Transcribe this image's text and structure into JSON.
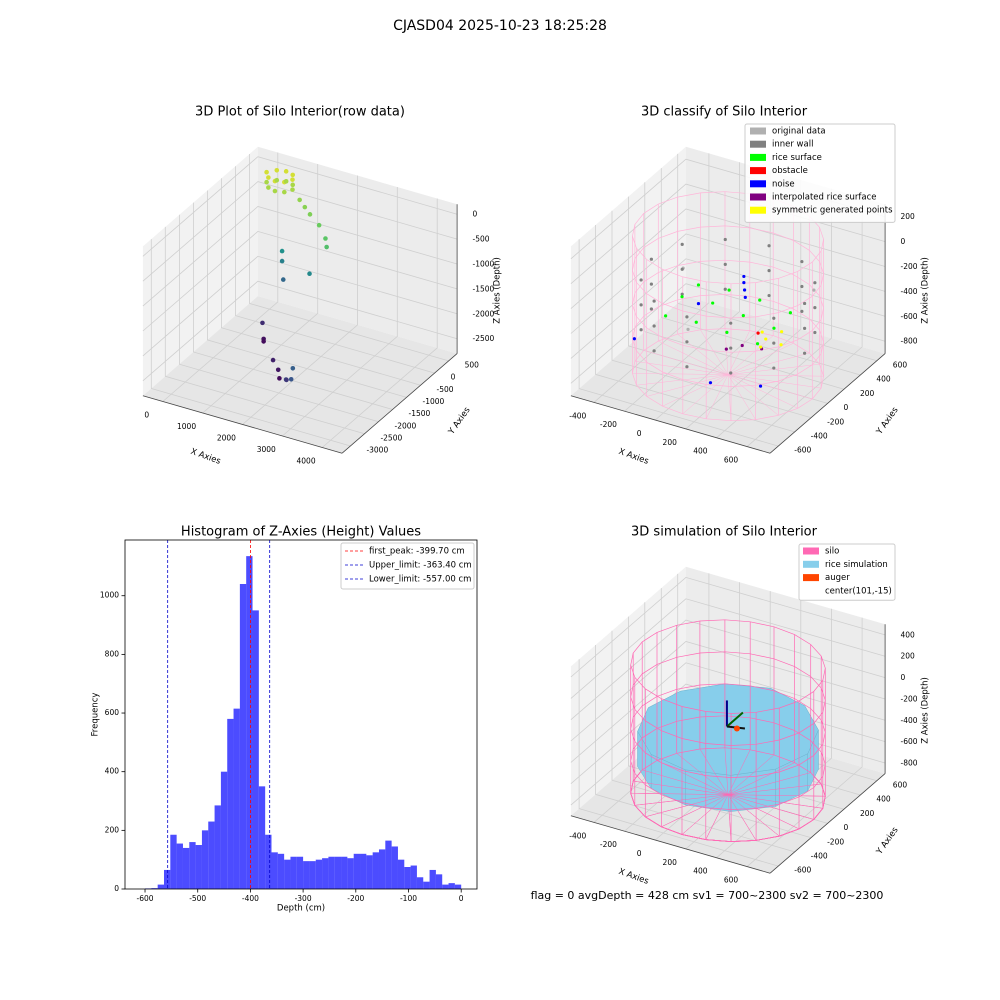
{
  "suptitle": "CJASD04 2025-10-23 18:25:28",
  "status": "flag = 0     avgDepth = 428 cm  sv1 = 700~2300  sv2 = 700~2300",
  "chart_data": [
    {
      "type": "scatter3d",
      "title": "3D Plot of Silo Interior(row data)",
      "x_label": "X Axies",
      "y_label": "Y Axies",
      "z_label": "Z Axies (Depth)",
      "xlim": [
        -500,
        4500
      ],
      "ylim": [
        -3300,
        800
      ],
      "zlim": [
        -2800,
        200
      ],
      "xticks": [
        0,
        1000,
        2000,
        3000,
        4000
      ],
      "yticks": [
        -3000,
        -2500,
        -2000,
        -1500,
        -1000,
        -500,
        0,
        500
      ],
      "zticks": [
        -2500,
        -2000,
        -1500,
        -1000,
        -500,
        0
      ],
      "colormap": "viridis",
      "points": {
        "x": [
          0,
          150,
          350,
          550,
          650,
          550,
          350,
          150,
          0,
          150,
          350,
          550,
          650,
          550,
          350,
          150,
          900,
          1100,
          1300,
          1600,
          1900,
          2000,
          600,
          600,
          700,
          1500,
          2700,
          2800,
          2600,
          2400,
          1500,
          1700,
          1800,
          600,
          700,
          700
        ],
        "y": [
          400,
          550,
          600,
          550,
          400,
          250,
          200,
          250,
          400,
          550,
          600,
          550,
          400,
          250,
          200,
          250,
          300,
          200,
          100,
          0,
          -200,
          -300,
          100,
          100,
          0,
          -200,
          -2500,
          -2700,
          -2600,
          -2300,
          -1500,
          -1600,
          -1700,
          -600,
          -700,
          -700
        ],
        "z": [
          0,
          0,
          0,
          0,
          0,
          0,
          0,
          0,
          -200,
          -200,
          -200,
          -200,
          -200,
          -200,
          -200,
          -200,
          -300,
          -350,
          -400,
          -500,
          -600,
          -700,
          -1300,
          -1500,
          -1800,
          -1400,
          -1900,
          -2000,
          -2100,
          -2300,
          -2500,
          -2600,
          -2700,
          -2400,
          -2650,
          -2700
        ]
      }
    },
    {
      "type": "scatter3d",
      "title": "3D classify of Silo Interior",
      "x_label": "X Axies",
      "y_label": "Y Axies",
      "z_label": "Z Axies (Depth)",
      "xlim": [
        -550,
        750
      ],
      "ylim": [
        -700,
        700
      ],
      "zlim": [
        -900,
        300
      ],
      "xticks": [
        -400,
        -200,
        0,
        200,
        400,
        600
      ],
      "yticks": [
        -600,
        -400,
        -200,
        0,
        200,
        400,
        600
      ],
      "zticks": [
        -800,
        -600,
        -400,
        -200,
        0,
        200
      ],
      "wireframe": {
        "center": [
          100,
          0
        ],
        "radius": 550,
        "zlim": [
          -900,
          200
        ],
        "color": "#ffb6d9"
      },
      "series": [
        {
          "name": "original data",
          "color": "#b0b0b0",
          "x": [
            -300,
            500,
            0
          ],
          "y": [
            200,
            300,
            -300
          ],
          "z": [
            -300,
            -250,
            -400
          ]
        },
        {
          "name": "inner wall",
          "color": "#808080",
          "x": [
            600,
            533,
            350,
            100,
            -150,
            -333,
            -400,
            -333,
            -150,
            100,
            350,
            533,
            600,
            533,
            350,
            100,
            -150,
            -333,
            -400,
            -333,
            -150,
            100,
            350,
            533,
            600,
            533,
            350,
            100,
            -150,
            -333,
            -400,
            -333,
            -150,
            100,
            350,
            533
          ],
          "y": [
            0,
            250,
            433,
            500,
            433,
            250,
            0,
            -250,
            -433,
            -500,
            -433,
            -250,
            0,
            250,
            433,
            500,
            433,
            250,
            0,
            -250,
            -433,
            -500,
            -433,
            -250,
            0,
            250,
            433,
            500,
            433,
            250,
            0,
            -250,
            -433,
            -500,
            -433,
            -250
          ],
          "z": [
            -150,
            -150,
            -150,
            -150,
            -150,
            -150,
            -150,
            -150,
            -150,
            -150,
            -150,
            -150,
            -350,
            -350,
            -350,
            -350,
            -350,
            -350,
            -350,
            -350,
            -350,
            -350,
            -350,
            -350,
            -550,
            -550,
            -550,
            -550,
            -550,
            -550,
            -550,
            -550,
            -550,
            -550,
            -550,
            -550
          ]
        },
        {
          "name": "rice surface",
          "color": "#00ff00",
          "x": [
            -200,
            0,
            200,
            400,
            -200,
            0,
            200,
            400,
            -200,
            0,
            200,
            400
          ],
          "y": [
            -200,
            -200,
            -200,
            -200,
            0,
            0,
            0,
            0,
            200,
            200,
            200,
            200
          ],
          "z": [
            -420,
            -400,
            -410,
            -430,
            -380,
            -360,
            -390,
            -420,
            -400,
            -370,
            -380,
            -410
          ]
        },
        {
          "name": "obstacle",
          "color": "#ff0000",
          "x": [
            350
          ],
          "y": [
            -100
          ],
          "z": [
            -420
          ]
        },
        {
          "name": "noise",
          "color": "#0000ff",
          "x": [
            150,
            150,
            160,
            170,
            -350,
            500,
            200,
            -200
          ],
          "y": [
            100,
            100,
            90,
            80,
            -300,
            -350,
            -400,
            200
          ],
          "z": [
            -150,
            -200,
            -250,
            -300,
            -600,
            -650,
            -700,
            -550
          ]
        },
        {
          "name": "interpolated rice surface",
          "color": "#800080",
          "x": [
            300,
            400,
            250
          ],
          "y": [
            -200,
            -150,
            -300
          ],
          "z": [
            -480,
            -500,
            -470
          ]
        },
        {
          "name": "symmetric generated points",
          "color": "#ffff00",
          "x": [
            400,
            450,
            350,
            500,
            420
          ],
          "y": [
            -100,
            0,
            -50,
            -100,
            -200
          ],
          "z": [
            -450,
            -430,
            -440,
            -460,
            -450
          ]
        }
      ]
    },
    {
      "type": "histogram",
      "title": "Histogram of Z-Axies (Height) Values",
      "x_label": "Depth (cm)",
      "y_label": "Frequency",
      "xlim": [
        -638,
        30
      ],
      "ylim": [
        0,
        1190
      ],
      "xticks": [
        -600,
        -500,
        -400,
        -300,
        -200,
        -100,
        0
      ],
      "yticks": [
        0,
        200,
        400,
        600,
        800,
        1000
      ],
      "color": "#0000ff",
      "alpha": 0.7,
      "bins": [
        -600,
        -588,
        -576,
        -564,
        -552,
        -540,
        -528,
        -516,
        -504,
        -492,
        -480,
        -468,
        -456,
        -444,
        -432,
        -420,
        -408,
        -396,
        -384,
        -372,
        -360,
        -348,
        -336,
        -324,
        -312,
        -300,
        -288,
        -276,
        -264,
        -252,
        -240,
        -228,
        -216,
        -204,
        -192,
        -180,
        -168,
        -156,
        -144,
        -132,
        -120,
        -108,
        -96,
        -84,
        -72,
        -60,
        -48,
        -36,
        -24,
        -12,
        0
      ],
      "counts": [
        2,
        3,
        15,
        65,
        185,
        155,
        140,
        160,
        150,
        200,
        230,
        285,
        400,
        580,
        615,
        1040,
        1135,
        950,
        350,
        185,
        125,
        120,
        100,
        110,
        110,
        95,
        95,
        100,
        105,
        110,
        110,
        110,
        105,
        120,
        120,
        115,
        125,
        135,
        165,
        145,
        100,
        75,
        80,
        40,
        25,
        65,
        50,
        15,
        20,
        15
      ],
      "vlines": [
        {
          "label": "first_peak: -399.70 cm",
          "value": -399.7,
          "color": "#ff0000"
        },
        {
          "label": "Upper_limit: -363.40 cm",
          "value": -363.4,
          "color": "#0000cc"
        },
        {
          "label": "Lower_limit: -557.00 cm",
          "value": -557.0,
          "color": "#0000cc"
        }
      ]
    },
    {
      "type": "surface3d",
      "title": "3D simulation of Silo Interior",
      "x_label": "X Axies",
      "y_label": "Y Axies",
      "z_label": "Z Axies (Depth)",
      "xlim": [
        -550,
        750
      ],
      "ylim": [
        -700,
        700
      ],
      "zlim": [
        -900,
        500
      ],
      "xticks": [
        -400,
        -200,
        0,
        200,
        400,
        600
      ],
      "yticks": [
        -600,
        -400,
        -200,
        0,
        200,
        400,
        600
      ],
      "zticks": [
        -800,
        -600,
        -400,
        -200,
        0,
        200,
        400
      ],
      "silo": {
        "name": "silo",
        "color": "#ff69b4",
        "center": [
          100,
          0
        ],
        "radius": 560,
        "zlim": [
          -900,
          300
        ]
      },
      "rice": {
        "name": "rice simulation",
        "color": "#87ceeb",
        "center": [
          100,
          0
        ],
        "radius": 520,
        "top_z": [
          -300,
          -280,
          -260,
          -250,
          -270,
          -290,
          -300,
          -320,
          -330,
          -320,
          -310,
          -300
        ],
        "bottom_z": -650
      },
      "auger": {
        "name": "auger",
        "color": "#ff4500",
        "x": 101,
        "y": -15,
        "z": -250
      },
      "center_label": "center(101,-15)"
    }
  ]
}
